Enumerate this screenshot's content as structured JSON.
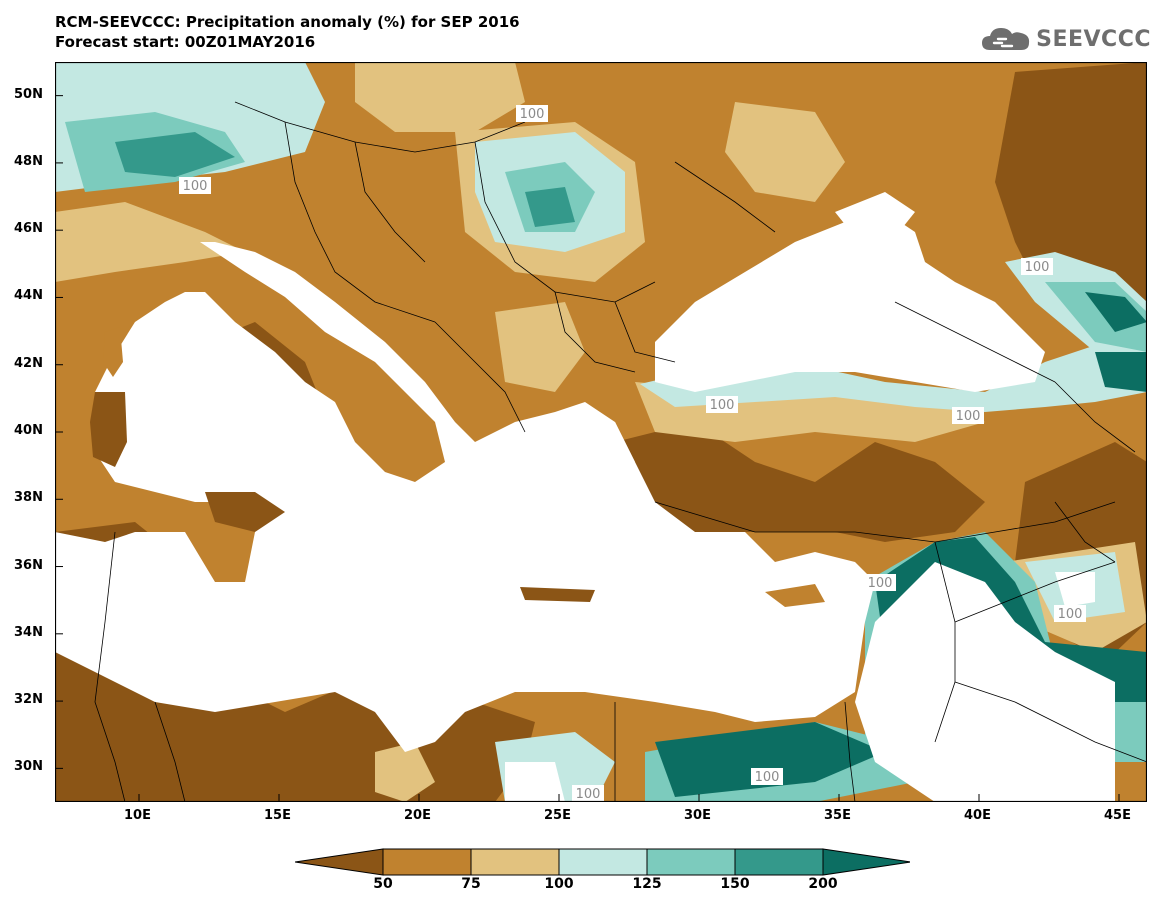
{
  "title": {
    "line1": "RCM-SEEVCCC: Precipitation anomaly (%) for SEP 2016",
    "line2": "Forecast start: 00Z01MAY2016"
  },
  "logo": {
    "text": "SEEVCCC",
    "icon": "cloud-icon"
  },
  "map": {
    "lon_range": [
      7,
      46
    ],
    "lat_range": [
      29,
      51
    ],
    "lat_ticks": [
      "50N",
      "48N",
      "46N",
      "44N",
      "42N",
      "40N",
      "38N",
      "36N",
      "34N",
      "32N",
      "30N"
    ],
    "lon_ticks": [
      "10E",
      "15E",
      "20E",
      "25E",
      "30E",
      "35E",
      "40E",
      "45E"
    ],
    "contour_label": "100"
  },
  "legend": {
    "levels": [
      "50",
      "75",
      "100",
      "125",
      "150",
      "200"
    ],
    "colors": [
      "#8b5516",
      "#c0822f",
      "#e2c27f",
      "#c3e8e2",
      "#7ccbbd",
      "#34998b",
      "#0c6e62"
    ]
  },
  "colors": {
    "below_50": "#8b5516",
    "50_75": "#c0822f",
    "75_100": "#e2c27f",
    "100_125": "#c3e8e2",
    "125_150": "#7ccbbd",
    "150_200": "#34998b",
    "above_200": "#0c6e62",
    "sea": "#ffffff"
  }
}
